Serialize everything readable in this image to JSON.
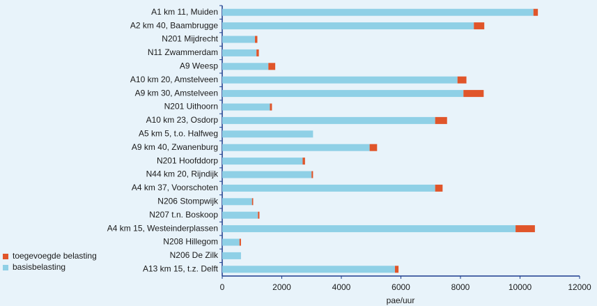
{
  "chart_data": {
    "type": "stacked-barh",
    "xlabel": "pae/uur",
    "categories": [
      "A1 km 11, Muiden",
      "A2 km 40, Baambrugge",
      "N201 Mijdrecht",
      "N11 Zwammerdam",
      "A9 Weesp",
      "A10 km 20, Amstelveen",
      "A9 km 30, Amstelveen",
      "N201 Uithoorn",
      "A10 km 23, Osdorp",
      "A5 km 5, t.o. Halfweg",
      "A9 km 40, Zwanenburg",
      "N201 Hoofddorp",
      "N44 km 20, Rijndijk",
      "A4 km 37, Voorschoten",
      "N206 Stompwijk",
      "N207 t.n. Boskoop",
      "A4 km 15, Westeinderplassen",
      "N208 Hillegom",
      "N206 De Zilk",
      "A13 km 15, t.z. Delft"
    ],
    "series": [
      {
        "name": "basisbelasting",
        "color": "#8fd0e6",
        "values": [
          10450,
          8450,
          1100,
          1150,
          1550,
          7900,
          8100,
          1600,
          7150,
          3050,
          4950,
          2700,
          3000,
          7150,
          1000,
          1200,
          9850,
          580,
          630,
          5800
        ]
      },
      {
        "name": "toegevoegde belasting",
        "color": "#e0552a",
        "values": [
          150,
          350,
          80,
          80,
          230,
          300,
          680,
          70,
          400,
          0,
          250,
          80,
          50,
          250,
          40,
          50,
          650,
          50,
          0,
          120
        ]
      }
    ],
    "xlim": [
      0,
      12000
    ],
    "xticks": [
      0,
      2000,
      4000,
      6000,
      8000,
      10000,
      12000
    ],
    "legend": "lower left"
  }
}
